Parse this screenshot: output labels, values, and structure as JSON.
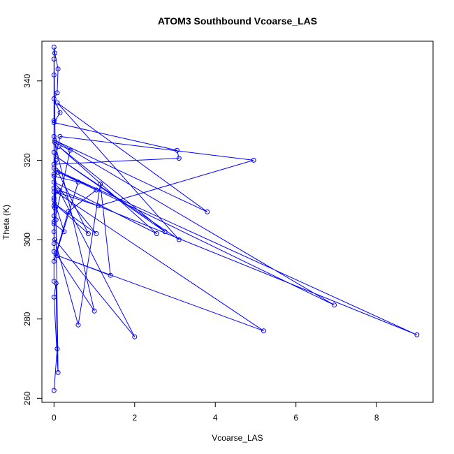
{
  "chart_data": {
    "type": "line",
    "title": "ATOM3 Southbound Vcoarse_LAS",
    "xlabel": "Vcoarse_LAS",
    "ylabel": "Theta (K)",
    "xlim": [
      -0.3,
      9.4
    ],
    "ylim": [
      259,
      350
    ],
    "x_ticks": [
      0,
      2,
      4,
      6,
      8
    ],
    "y_ticks": [
      260,
      280,
      300,
      320,
      340
    ],
    "grid": false,
    "legend": "none",
    "colors": {
      "series": "#0000ff",
      "axis": "#000000",
      "background": "#ffffff"
    },
    "markers": "open-circle",
    "series": [
      {
        "points": [
          [
            0.0,
            262.0
          ],
          [
            0.08,
            272.5
          ],
          [
            0.05,
            289.0
          ],
          [
            0.0,
            285.5
          ],
          [
            0.1,
            266.5
          ],
          [
            0.05,
            305.0
          ],
          [
            0.0,
            348.5
          ],
          [
            0.02,
            347.0
          ],
          [
            0.1,
            343.0
          ],
          [
            0.08,
            337.0
          ],
          [
            0.0,
            335.5
          ],
          [
            0.15,
            332.0
          ],
          [
            0.0,
            329.5
          ],
          [
            3.05,
            322.5
          ],
          [
            3.1,
            320.5
          ],
          [
            0.0,
            319.0
          ],
          [
            0.15,
            326.0
          ],
          [
            4.95,
            320.0
          ],
          [
            1.1,
            308.5
          ],
          [
            0.05,
            312.0
          ],
          [
            5.2,
            277.0
          ],
          [
            0.08,
            296.0
          ],
          [
            1.4,
            291.0
          ],
          [
            1.15,
            314.0
          ],
          [
            0.6,
            278.5
          ],
          [
            0.02,
            300.0
          ],
          [
            2.0,
            275.5
          ],
          [
            0.12,
            312.5
          ],
          [
            9.0,
            276.0
          ],
          [
            0.05,
            317.5
          ],
          [
            6.95,
            283.5
          ],
          [
            0.02,
            325.0
          ],
          [
            3.8,
            307.0
          ],
          [
            0.08,
            334.5
          ],
          [
            3.1,
            300.0
          ],
          [
            0.05,
            321.0
          ],
          [
            2.75,
            302.0
          ],
          [
            0.12,
            323.5
          ],
          [
            2.55,
            301.5
          ],
          [
            0.0,
            314.5
          ],
          [
            1.05,
            301.5
          ],
          [
            0.02,
            309.0
          ],
          [
            0.85,
            301.5
          ],
          [
            0.1,
            317.0
          ],
          [
            1.05,
            312.5
          ],
          [
            0.35,
            307.0
          ],
          [
            0.05,
            296.5
          ],
          [
            1.0,
            282.0
          ],
          [
            0.02,
            324.5
          ],
          [
            0.4,
            322.5
          ],
          [
            0.0,
            304.0
          ],
          [
            0.25,
            302.0
          ],
          [
            0.0,
            310.0
          ],
          [
            0.0,
            294.5
          ],
          [
            0.6,
            314.5
          ],
          [
            0.0,
            316.0
          ],
          [
            0.02,
            308.0
          ],
          [
            0.0,
            299.0
          ],
          [
            0.05,
            320.0
          ],
          [
            0.0,
            310.5
          ],
          [
            0.0,
            306.0
          ],
          [
            0.0,
            302.0
          ],
          [
            0.0,
            313.0
          ],
          [
            0.0,
            316.5
          ],
          [
            0.0,
            322.0
          ],
          [
            0.0,
            326.0
          ],
          [
            0.0,
            330.0
          ],
          [
            0.0,
            345.5
          ],
          [
            0.0,
            341.5
          ],
          [
            0.0,
            318.0
          ],
          [
            0.0,
            312.0
          ],
          [
            0.0,
            308.5
          ],
          [
            0.0,
            304.5
          ],
          [
            0.0,
            297.0
          ],
          [
            0.0,
            289.5
          ]
        ]
      }
    ]
  }
}
